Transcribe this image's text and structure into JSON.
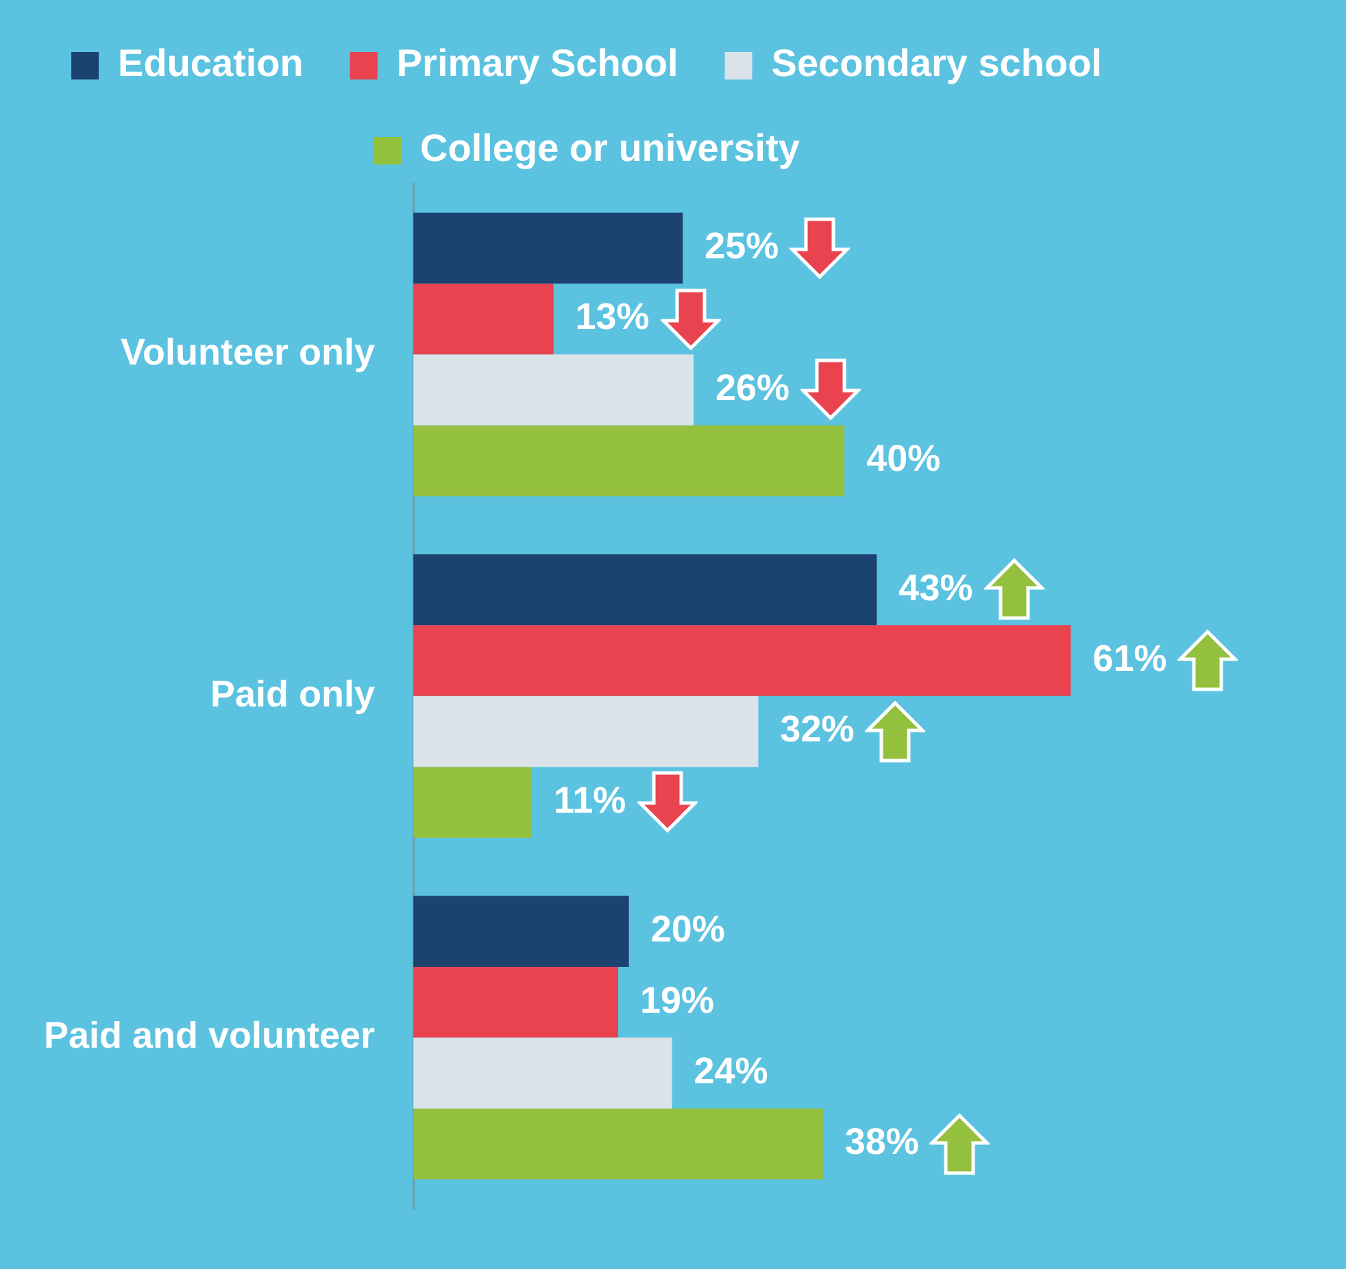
{
  "chart_data": {
    "type": "bar",
    "orientation": "horizontal",
    "categories": [
      "Volunteer only",
      "Paid only",
      "Paid and volunteer"
    ],
    "series": [
      {
        "name": "Education",
        "color": "#1c4270",
        "values": [
          25,
          43,
          20
        ],
        "value_labels": [
          "25%",
          "43%",
          "20%"
        ]
      },
      {
        "name": "Primary School",
        "color": "#e8434f",
        "values": [
          13,
          61,
          19
        ],
        "value_labels": [
          "13%",
          "61%",
          "19%"
        ]
      },
      {
        "name": "Secondary school",
        "color": "#dae3ea",
        "values": [
          26,
          32,
          24
        ],
        "value_labels": [
          "26%",
          "32%",
          "24%"
        ]
      },
      {
        "name": "College or university",
        "color": "#93c13d",
        "values": [
          40,
          11,
          38
        ],
        "value_labels": [
          "40%",
          "11%",
          "38%"
        ]
      }
    ],
    "legend": "top",
    "grid": false,
    "tick_labels": "y"
  }
}
